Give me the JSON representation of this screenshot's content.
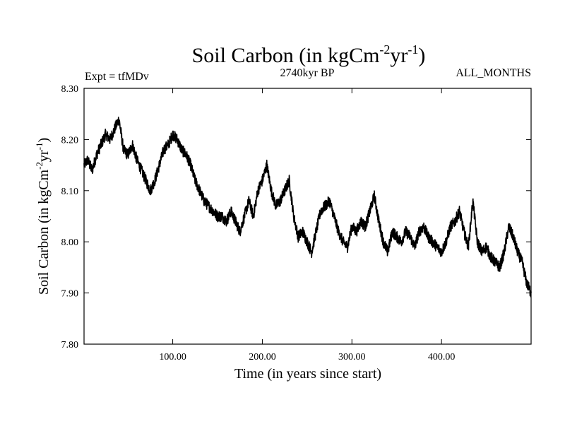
{
  "chart_data": {
    "type": "line",
    "title_main": "Soil Carbon (in kgCm",
    "title_sup1": "-2",
    "title_mid": "yr",
    "title_sup2": "-1",
    "title_end": ")",
    "subtitle_left": "Expt = tfMDv",
    "subtitle_center": "2740kyr BP",
    "subtitle_right": "ALL_MONTHS",
    "xlabel": "Time (in years since start)",
    "ylabel": "Soil Carbon (in kgCm^-2yr^-1)",
    "ylabel_main": "Soil Carbon (in kgCm",
    "ylabel_sup1": "-2",
    "ylabel_mid": "yr",
    "ylabel_sup2": "-1",
    "ylabel_end": ")",
    "xlim": [
      1,
      500
    ],
    "ylim": [
      7.8,
      8.3
    ],
    "x_ticks": [
      100,
      200,
      300,
      400
    ],
    "x_tick_labels": [
      "100.00",
      "200.00",
      "300.00",
      "400.00"
    ],
    "y_ticks": [
      7.8,
      7.9,
      8.0,
      8.1,
      8.2,
      8.3
    ],
    "y_tick_labels": [
      "7.80",
      "7.90",
      "8.00",
      "8.10",
      "8.20",
      "8.30"
    ],
    "grid": false,
    "noise_amplitude": 0.011,
    "series": [
      {
        "name": "Soil Carbon",
        "color": "#000000",
        "x": [
          1,
          5,
          10,
          15,
          20,
          25,
          30,
          35,
          40,
          45,
          50,
          55,
          60,
          65,
          70,
          75,
          80,
          85,
          90,
          95,
          100,
          105,
          110,
          115,
          120,
          125,
          130,
          135,
          140,
          145,
          150,
          155,
          160,
          165,
          170,
          175,
          180,
          185,
          190,
          195,
          200,
          205,
          210,
          215,
          220,
          225,
          230,
          235,
          240,
          245,
          250,
          255,
          260,
          265,
          270,
          275,
          280,
          285,
          290,
          295,
          300,
          305,
          310,
          315,
          320,
          325,
          330,
          335,
          340,
          345,
          350,
          355,
          360,
          365,
          370,
          375,
          380,
          385,
          390,
          395,
          400,
          405,
          410,
          415,
          420,
          425,
          430,
          435,
          440,
          445,
          450,
          455,
          460,
          465,
          470,
          475,
          480,
          485,
          490,
          495,
          500
        ],
        "y": [
          8.15,
          8.16,
          8.14,
          8.17,
          8.19,
          8.21,
          8.2,
          8.22,
          8.24,
          8.18,
          8.17,
          8.19,
          8.16,
          8.14,
          8.12,
          8.1,
          8.12,
          8.15,
          8.18,
          8.19,
          8.21,
          8.2,
          8.18,
          8.17,
          8.15,
          8.12,
          8.1,
          8.08,
          8.07,
          8.06,
          8.05,
          8.05,
          8.04,
          8.06,
          8.04,
          8.02,
          8.05,
          8.08,
          8.05,
          8.1,
          8.12,
          8.15,
          8.1,
          8.07,
          8.08,
          8.1,
          8.12,
          8.05,
          8.01,
          8.02,
          8.0,
          7.98,
          8.02,
          8.06,
          8.07,
          8.08,
          8.05,
          8.02,
          8.0,
          7.99,
          8.03,
          8.02,
          8.04,
          8.03,
          8.06,
          8.09,
          8.04,
          8.0,
          7.98,
          8.02,
          8.01,
          8.0,
          8.02,
          8.01,
          7.99,
          8.02,
          8.03,
          8.01,
          8.0,
          7.99,
          7.98,
          8.0,
          8.03,
          8.04,
          8.06,
          8.02,
          7.99,
          8.08,
          8.0,
          7.98,
          7.99,
          7.97,
          7.96,
          7.95,
          7.98,
          8.03,
          8.01,
          7.98,
          7.96,
          7.92,
          7.9
        ]
      }
    ]
  }
}
